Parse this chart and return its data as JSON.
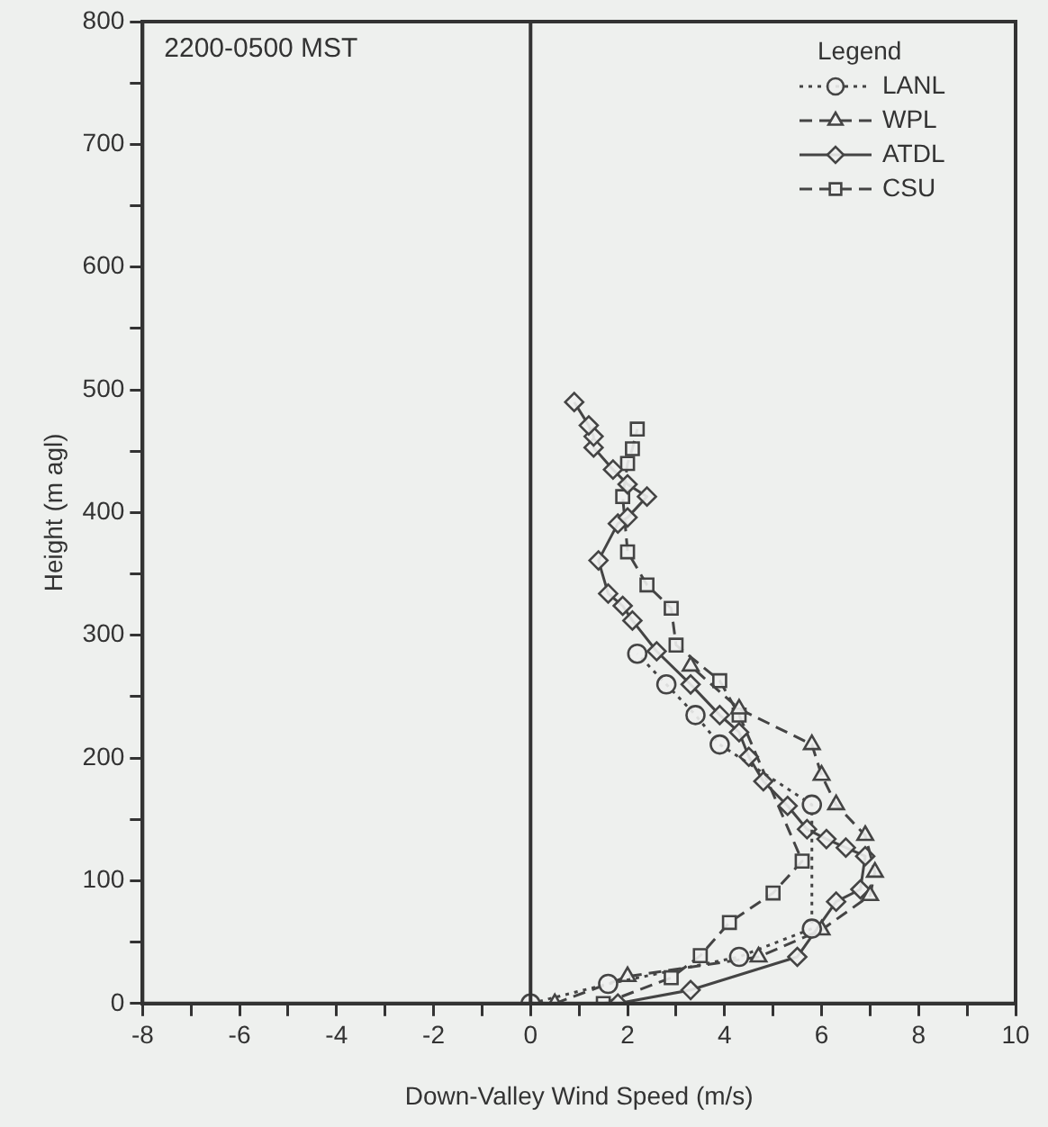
{
  "chart_data": {
    "type": "line",
    "xlabel": "Down-Valley Wind Speed (m/s)",
    "ylabel": "Height (m agl)",
    "legend_title": "Legend",
    "annotations": [
      "2200-0500 MST"
    ],
    "xlim": [
      -8,
      10
    ],
    "ylim": [
      0,
      800
    ],
    "xticks": [
      -8,
      {
        "value": -7,
        "label": null
      },
      -6,
      {
        "value": -5,
        "label": null
      },
      -4,
      {
        "value": -3,
        "label": null
      },
      -2,
      {
        "value": -1,
        "label": null
      },
      0,
      {
        "value": 1,
        "label": null
      },
      2,
      {
        "value": 3,
        "label": null
      },
      4,
      {
        "value": 5,
        "label": null
      },
      6,
      {
        "value": 7,
        "label": null
      },
      8,
      {
        "value": 9,
        "label": null
      },
      10
    ],
    "yticks": [
      0,
      {
        "value": 50,
        "label": null
      },
      100,
      {
        "value": 150,
        "label": null
      },
      200,
      {
        "value": 250,
        "label": null
      },
      300,
      {
        "value": 350,
        "label": null
      },
      400,
      {
        "value": 450,
        "label": null
      },
      500,
      {
        "value": 550,
        "label": null
      },
      600,
      {
        "value": 650,
        "label": null
      },
      700,
      {
        "value": 750,
        "label": null
      },
      800
    ],
    "ref_lines": [
      {
        "axis": "x",
        "value": 0,
        "color": "#333333"
      }
    ],
    "legend": "top right",
    "grid": false,
    "series": [
      {
        "name": "LANL",
        "color": "#444444",
        "marker": "circle",
        "line_style": "dotted",
        "x": [
          0,
          1.6,
          4.3,
          5.8,
          5.8,
          3.9,
          3.4,
          2.8,
          2.2
        ],
        "values": [
          0,
          16,
          38,
          61,
          162,
          211,
          235,
          260,
          285
        ]
      },
      {
        "name": "WPL",
        "color": "#444444",
        "marker": "triangle",
        "line_style": "dashed",
        "x": [
          0.5,
          2.0,
          4.7,
          6.0,
          7.0,
          7.1,
          6.9,
          6.3,
          6.0,
          5.8,
          4.3,
          3.3
        ],
        "values": [
          0,
          22,
          38,
          60,
          88,
          107,
          137,
          162,
          186,
          211,
          240,
          275
        ]
      },
      {
        "name": "ATDL",
        "color": "#444444",
        "marker": "diamond",
        "line_style": "solid",
        "x": [
          1.8,
          3.3,
          5.5,
          6.3,
          6.8,
          6.9,
          6.5,
          6.1,
          5.7,
          5.3,
          4.8,
          4.5,
          4.3,
          3.9,
          3.3,
          2.6,
          2.1,
          1.9,
          1.6,
          1.4,
          1.8,
          2.0,
          2.4,
          2.0,
          1.7,
          1.3,
          1.3,
          1.2,
          0.9
        ],
        "values": [
          0,
          11,
          38,
          83,
          93,
          120,
          127,
          134,
          142,
          161,
          181,
          201,
          221,
          235,
          260,
          287,
          312,
          324,
          334,
          361,
          391,
          396,
          413,
          423,
          435,
          453,
          462,
          471,
          490
        ]
      },
      {
        "name": "CSU",
        "color": "#444444",
        "marker": "square",
        "line_style": "dashed",
        "x": [
          1.5,
          2.9,
          3.5,
          4.1,
          5.0,
          5.6,
          4.3,
          3.9,
          3.0,
          2.9,
          2.4,
          2.0,
          1.9,
          2.0,
          2.1,
          2.2
        ],
        "values": [
          0,
          21,
          39,
          66,
          90,
          116,
          235,
          263,
          292,
          322,
          341,
          368,
          413,
          440,
          452,
          468
        ]
      }
    ]
  }
}
